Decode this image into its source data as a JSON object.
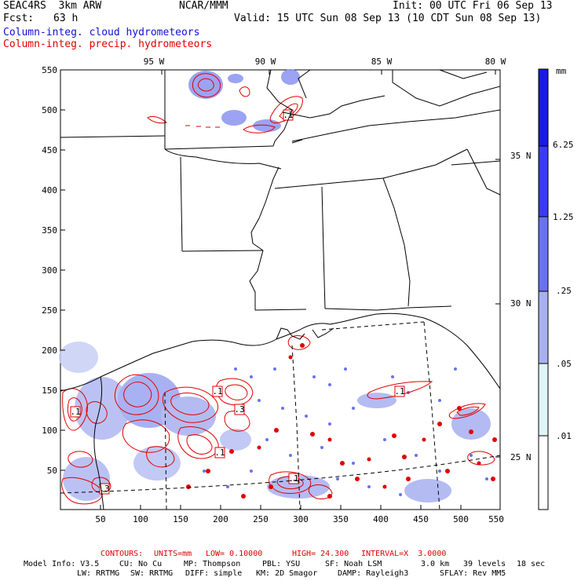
{
  "header": {
    "model": "SEAC4RS  3km ARW",
    "org": "NCAR/MMM",
    "init": "Init: 00 UTC Fri 06 Sep 13",
    "fcst_label": "Fcst:",
    "fcst_value": "63 h",
    "valid": "Valid: 15 UTC Sun 08 Sep 13 (10 CDT Sun 08 Sep 13)",
    "legend_blue": "Column-integ. cloud hydrometeors",
    "legend_red": "Column-integ. precip. hydrometeors"
  },
  "colors": {
    "cloud_blue": "#1010d0",
    "precip_red": "#e00000"
  },
  "axes": {
    "y_ticks": [
      "550",
      "500",
      "450",
      "400",
      "350",
      "300",
      "250",
      "200",
      "150",
      "100",
      "50"
    ],
    "x_ticks": [
      "50",
      "100",
      "150",
      "200",
      "250",
      "300",
      "350",
      "400",
      "450",
      "500",
      "550"
    ],
    "lon_labels": [
      "95 W",
      "90 W",
      "85 W",
      "80 W"
    ],
    "lat_labels": [
      "35 N",
      "30 N",
      "25 N"
    ]
  },
  "colorbar": {
    "unit": "mm",
    "levels": [
      "6.25",
      "1.25",
      ".25",
      ".05",
      ".01"
    ],
    "colors": [
      "#1a1ae0",
      "#3a3af0",
      "#6a72f0",
      "#a8b0f0",
      "#dff5f8",
      "#ffffff"
    ]
  },
  "contour_labels": [
    ".1",
    ".1",
    ".1",
    ".3",
    ".1",
    ".1",
    ".3",
    ".1"
  ],
  "footer": {
    "contours_label": "CONTOURS:",
    "units": "UNITS=mm",
    "low": "LOW= 0.10000",
    "high": "HIGH= 24.300",
    "interval": "INTERVAL=X  3.0000",
    "model_info": "Model Info: V3.5",
    "cu": "CU: No Cu",
    "mp": "MP: Thompson",
    "pbl": "PBL: YSU",
    "sf": "SF: Noah LSM",
    "res": "3.0 km",
    "levels": "39 levels",
    "dt": "18 sec",
    "lw": "LW: RRTMG",
    "sw": "SW: RRTMG",
    "diff": "DIFF: simple",
    "km": "KM: 2D Smagor",
    "damp": "DAMP: Rayleigh3",
    "sflay": "SFLAY: Rev MM5"
  }
}
